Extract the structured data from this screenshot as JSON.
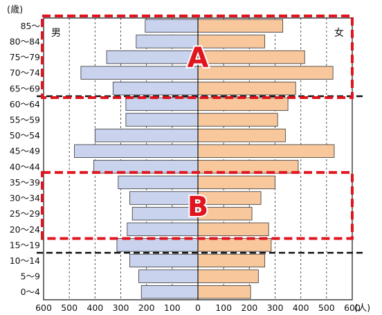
{
  "chart_data": {
    "type": "bar",
    "orientation": "horizontal-pyramid",
    "unit_top": "(歳)",
    "unit_bottom": "(人)",
    "left_label": "男",
    "right_label": "女",
    "categories": [
      "85～",
      "80～84",
      "75～79",
      "70～74",
      "65～69",
      "60～64",
      "55～59",
      "50～54",
      "45～49",
      "40～44",
      "35～39",
      "30～34",
      "25～29",
      "20～24",
      "15～19",
      "10～14",
      "5～9",
      "0～4"
    ],
    "series": [
      {
        "name": "男",
        "values": [
          205,
          240,
          355,
          455,
          330,
          280,
          280,
          400,
          480,
          405,
          310,
          265,
          255,
          275,
          315,
          265,
          230,
          220
        ]
      },
      {
        "name": "女",
        "values": [
          330,
          260,
          415,
          525,
          380,
          350,
          310,
          340,
          530,
          390,
          300,
          245,
          210,
          275,
          285,
          260,
          235,
          205
        ]
      }
    ],
    "xticks": [
      "600",
      "500",
      "400",
      "300",
      "200",
      "100",
      "0",
      "100",
      "200",
      "300",
      "400",
      "500",
      "600"
    ],
    "xlim": [
      -600,
      600
    ],
    "grid": "vertical dashed",
    "colors": {
      "male": "#c9d3ee",
      "female": "#f8c79c",
      "highlight": "#e0151f",
      "divider": "#111111"
    },
    "highlights": [
      {
        "label": "A",
        "from": "85～",
        "to": "65～69"
      },
      {
        "label": "B",
        "from": "35～39",
        "to": "20～24"
      }
    ],
    "dividers_below": [
      "65～69",
      "15～19"
    ]
  }
}
